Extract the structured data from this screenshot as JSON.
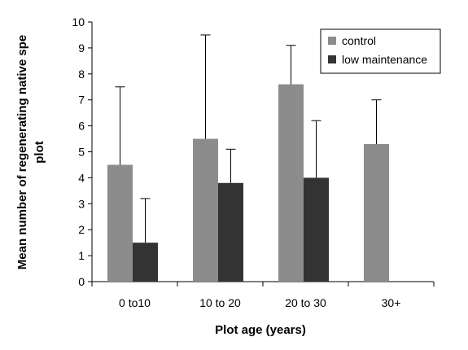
{
  "chart_data": {
    "type": "bar",
    "categories": [
      "0 to10",
      "10 to 20",
      "20 to 30",
      "30+"
    ],
    "series": [
      {
        "name": "control",
        "color": "#8c8c8c",
        "values": [
          4.5,
          5.5,
          7.6,
          5.3
        ],
        "error_upper": [
          7.5,
          9.5,
          9.1,
          7.0
        ]
      },
      {
        "name": "low maintenance",
        "color": "#333333",
        "values": [
          1.5,
          3.8,
          4.0,
          null
        ],
        "error_upper": [
          3.2,
          5.1,
          6.2,
          null
        ]
      }
    ],
    "ylim": [
      0,
      10
    ],
    "yticks": [
      "0",
      "1",
      "2",
      "3",
      "4",
      "5",
      "6",
      "7",
      "8",
      "9",
      "10"
    ],
    "xlabel": "Plot age (years)",
    "ylabel_lines": [
      "Mean number of regenerating native spe",
      "plot"
    ],
    "legend_position": "top-right",
    "grid": false
  }
}
